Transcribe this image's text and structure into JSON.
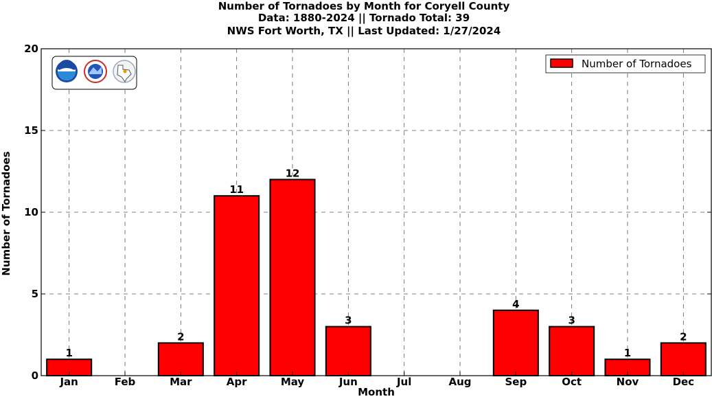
{
  "title_lines": [
    "Number of Tornadoes by Month for Coryell County",
    "Data: 1880-2024 || Tornado Total: 39",
    "NWS Fort Worth, TX || Last Updated: 1/27/2024"
  ],
  "chart_data": {
    "type": "bar",
    "categories": [
      "Jan",
      "Feb",
      "Mar",
      "Apr",
      "May",
      "Jun",
      "Jul",
      "Aug",
      "Sep",
      "Oct",
      "Nov",
      "Dec"
    ],
    "series": [
      {
        "name": "Number of Tornadoes",
        "values": [
          1,
          0,
          2,
          11,
          12,
          3,
          0,
          0,
          4,
          3,
          1,
          2
        ],
        "color": "#ff0000"
      }
    ],
    "data_labels": [
      "1",
      "",
      "2",
      "11",
      "12",
      "3",
      "",
      "",
      "4",
      "3",
      "1",
      "2"
    ],
    "xlabel": "Month",
    "ylabel": "Number of Tornadoes",
    "ylim": [
      0,
      20
    ],
    "yticks": [
      0,
      5,
      10,
      15,
      20
    ],
    "grid": true,
    "legend_position": "top-right"
  },
  "logos": [
    "noaa-logo",
    "nws-logo",
    "texas-map-logo"
  ]
}
